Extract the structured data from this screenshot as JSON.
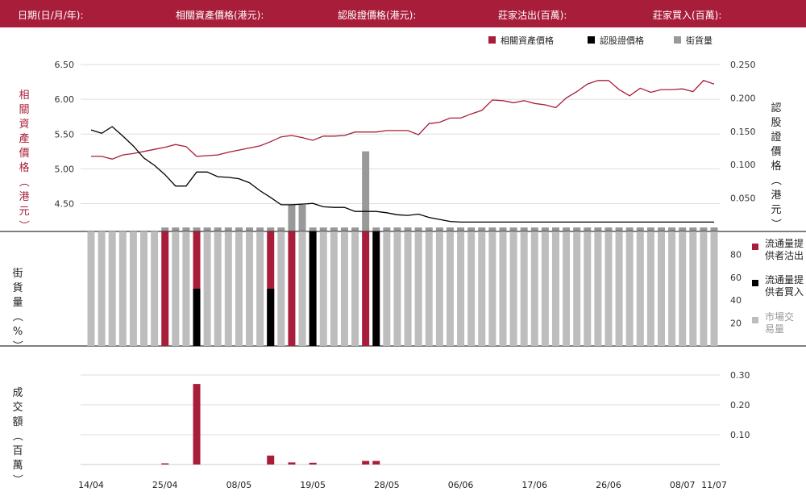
{
  "header": {
    "date_label": "日期(日/月/年):",
    "asset_price_label": "相關資產價格(港元):",
    "warrant_price_label": "認股證價格(港元):",
    "sell_label": "莊家沽出(百萬):",
    "buy_label": "莊家買入(百萬):"
  },
  "colors": {
    "brand": "#a81e3a",
    "asset": "#a81e3a",
    "warrant": "#000000",
    "outstanding": "#999999",
    "market": "#bdbdbd"
  },
  "chart_data": [
    {
      "type": "line",
      "legend": [
        "相關資產價格",
        "認股證價格",
        "街貨量"
      ],
      "ylabel_left": "相關資產價格（港元）",
      "ylabel_right": "認股證價格（港元）",
      "ylim_left": [
        4.1,
        6.5
      ],
      "yticks_left": [
        "6.50",
        "6.00",
        "5.50",
        "5.00",
        "4.50"
      ],
      "ylim_right": [
        0,
        0.25
      ],
      "yticks_right": [
        "0.250",
        "0.200",
        "0.150",
        "0.100",
        "0.050"
      ],
      "series": [
        {
          "name": "相關資產價格",
          "axis": "left",
          "values": [
            5.18,
            5.18,
            5.14,
            5.2,
            5.22,
            5.25,
            5.28,
            5.31,
            5.35,
            5.32,
            5.18,
            5.19,
            5.2,
            5.24,
            5.27,
            5.3,
            5.33,
            5.39,
            5.46,
            5.48,
            5.45,
            5.41,
            5.47,
            5.47,
            5.48,
            5.53,
            5.53,
            5.53,
            5.55,
            5.55,
            5.55,
            5.49,
            5.65,
            5.67,
            5.73,
            5.73,
            5.79,
            5.84,
            5.99,
            5.98,
            5.95,
            5.98,
            5.94,
            5.92,
            5.88,
            6.02,
            6.11,
            6.22,
            6.27,
            6.27,
            6.14,
            6.05,
            6.16,
            6.1,
            6.14,
            6.14,
            6.15,
            6.11,
            6.27,
            6.22
          ]
        },
        {
          "name": "認股證價格",
          "axis": "right",
          "values": [
            0.152,
            0.147,
            0.157,
            0.143,
            0.128,
            0.11,
            0.099,
            0.085,
            0.068,
            0.068,
            0.089,
            0.089,
            0.082,
            0.081,
            0.079,
            0.073,
            0.061,
            0.051,
            0.04,
            0.04,
            0.041,
            0.042,
            0.037,
            0.036,
            0.036,
            0.03,
            0.03,
            0.03,
            0.028,
            0.025,
            0.024,
            0.026,
            0.021,
            0.018,
            0.015,
            0.014,
            0.014,
            0.014,
            0.014,
            0.014,
            0.014,
            0.014,
            0.014,
            0.014,
            0.014,
            0.014,
            0.014,
            0.014,
            0.014,
            0.014,
            0.014,
            0.014,
            0.014,
            0.014,
            0.014,
            0.014,
            0.014,
            0.014,
            0.014,
            0.014
          ]
        },
        {
          "name": "街貨量",
          "axis": "bar",
          "values": [
            0,
            0,
            0,
            0,
            0,
            0,
            0,
            0.006,
            0.006,
            0.006,
            0.006,
            0.006,
            0.006,
            0.006,
            0.006,
            0.006,
            0.006,
            0.006,
            0.006,
            0.04,
            0.04,
            0.006,
            0.006,
            0.006,
            0.006,
            0.006,
            0.12,
            0.006,
            0.006,
            0.006,
            0.006,
            0.006,
            0.006,
            0.006,
            0.006,
            0.006,
            0.006,
            0.006,
            0.006,
            0.006,
            0.006,
            0.006,
            0.006,
            0.006,
            0.006,
            0.006,
            0.006,
            0.006,
            0.006,
            0.006,
            0.006,
            0.006,
            0.006,
            0.006,
            0.006,
            0.006,
            0.006,
            0.006,
            0.006,
            0.006
          ]
        }
      ]
    },
    {
      "type": "bar",
      "ylabel": "街貨量（%）",
      "ylim": [
        0,
        100
      ],
      "yticks": [
        "80",
        "60",
        "40",
        "20"
      ],
      "legend": [
        "流通量提供者沽出",
        "流通量提供者買入",
        "市場交易量"
      ],
      "series": [
        {
          "name": "流通量提供者沽出",
          "values": [
            0,
            0,
            0,
            0,
            0,
            0,
            0,
            100,
            0,
            0,
            100,
            0,
            0,
            0,
            0,
            0,
            0,
            100,
            0,
            100,
            0,
            0,
            0,
            0,
            0,
            0,
            100,
            0,
            0,
            0,
            0,
            0,
            0,
            0,
            0,
            0,
            0,
            0,
            0,
            0,
            0,
            0,
            0,
            0,
            0,
            0,
            0,
            0,
            0,
            0,
            0,
            0,
            0,
            0,
            0,
            0,
            0,
            0,
            0,
            0
          ]
        },
        {
          "name": "流通量提供者買入",
          "values": [
            0,
            0,
            0,
            0,
            0,
            0,
            0,
            0,
            0,
            0,
            50,
            0,
            0,
            0,
            0,
            0,
            0,
            50,
            0,
            0,
            0,
            100,
            0,
            0,
            0,
            0,
            0,
            100,
            0,
            0,
            0,
            0,
            0,
            0,
            0,
            0,
            0,
            0,
            0,
            0,
            0,
            0,
            0,
            0,
            0,
            0,
            0,
            0,
            0,
            0,
            0,
            0,
            0,
            0,
            0,
            0,
            0,
            0,
            0,
            0
          ]
        },
        {
          "name": "市場交易量",
          "values": [
            100,
            100,
            100,
            100,
            100,
            100,
            100,
            0,
            100,
            100,
            0,
            100,
            100,
            100,
            100,
            100,
            100,
            0,
            100,
            0,
            100,
            0,
            100,
            100,
            100,
            100,
            0,
            0,
            100,
            100,
            100,
            100,
            100,
            100,
            100,
            100,
            100,
            100,
            100,
            100,
            100,
            100,
            100,
            100,
            100,
            100,
            100,
            100,
            100,
            100,
            100,
            100,
            100,
            100,
            100,
            100,
            100,
            100,
            100,
            100
          ]
        }
      ]
    },
    {
      "type": "bar",
      "ylabel": "成交額（百萬）",
      "ylim": [
        0,
        0.3
      ],
      "yticks": [
        "0.30",
        "0.20",
        "0.10"
      ],
      "values": [
        0,
        0,
        0,
        0,
        0,
        0,
        0,
        0.004,
        0,
        0,
        0.27,
        0,
        0,
        0,
        0,
        0,
        0,
        0.03,
        0,
        0.007,
        0,
        0.006,
        0,
        0,
        0,
        0,
        0.012,
        0.012,
        0,
        0,
        0,
        0,
        0,
        0,
        0,
        0,
        0,
        0,
        0,
        0,
        0,
        0,
        0,
        0,
        0,
        0,
        0,
        0,
        0,
        0,
        0,
        0,
        0,
        0,
        0,
        0,
        0,
        0,
        0,
        0
      ],
      "x_tick_labels": [
        "14/04",
        "25/04",
        "08/05",
        "19/05",
        "28/05",
        "06/06",
        "17/06",
        "26/06",
        "08/07",
        "11/07"
      ],
      "x_tick_index": [
        0,
        7,
        14,
        21,
        28,
        35,
        42,
        49,
        56,
        59
      ]
    }
  ]
}
